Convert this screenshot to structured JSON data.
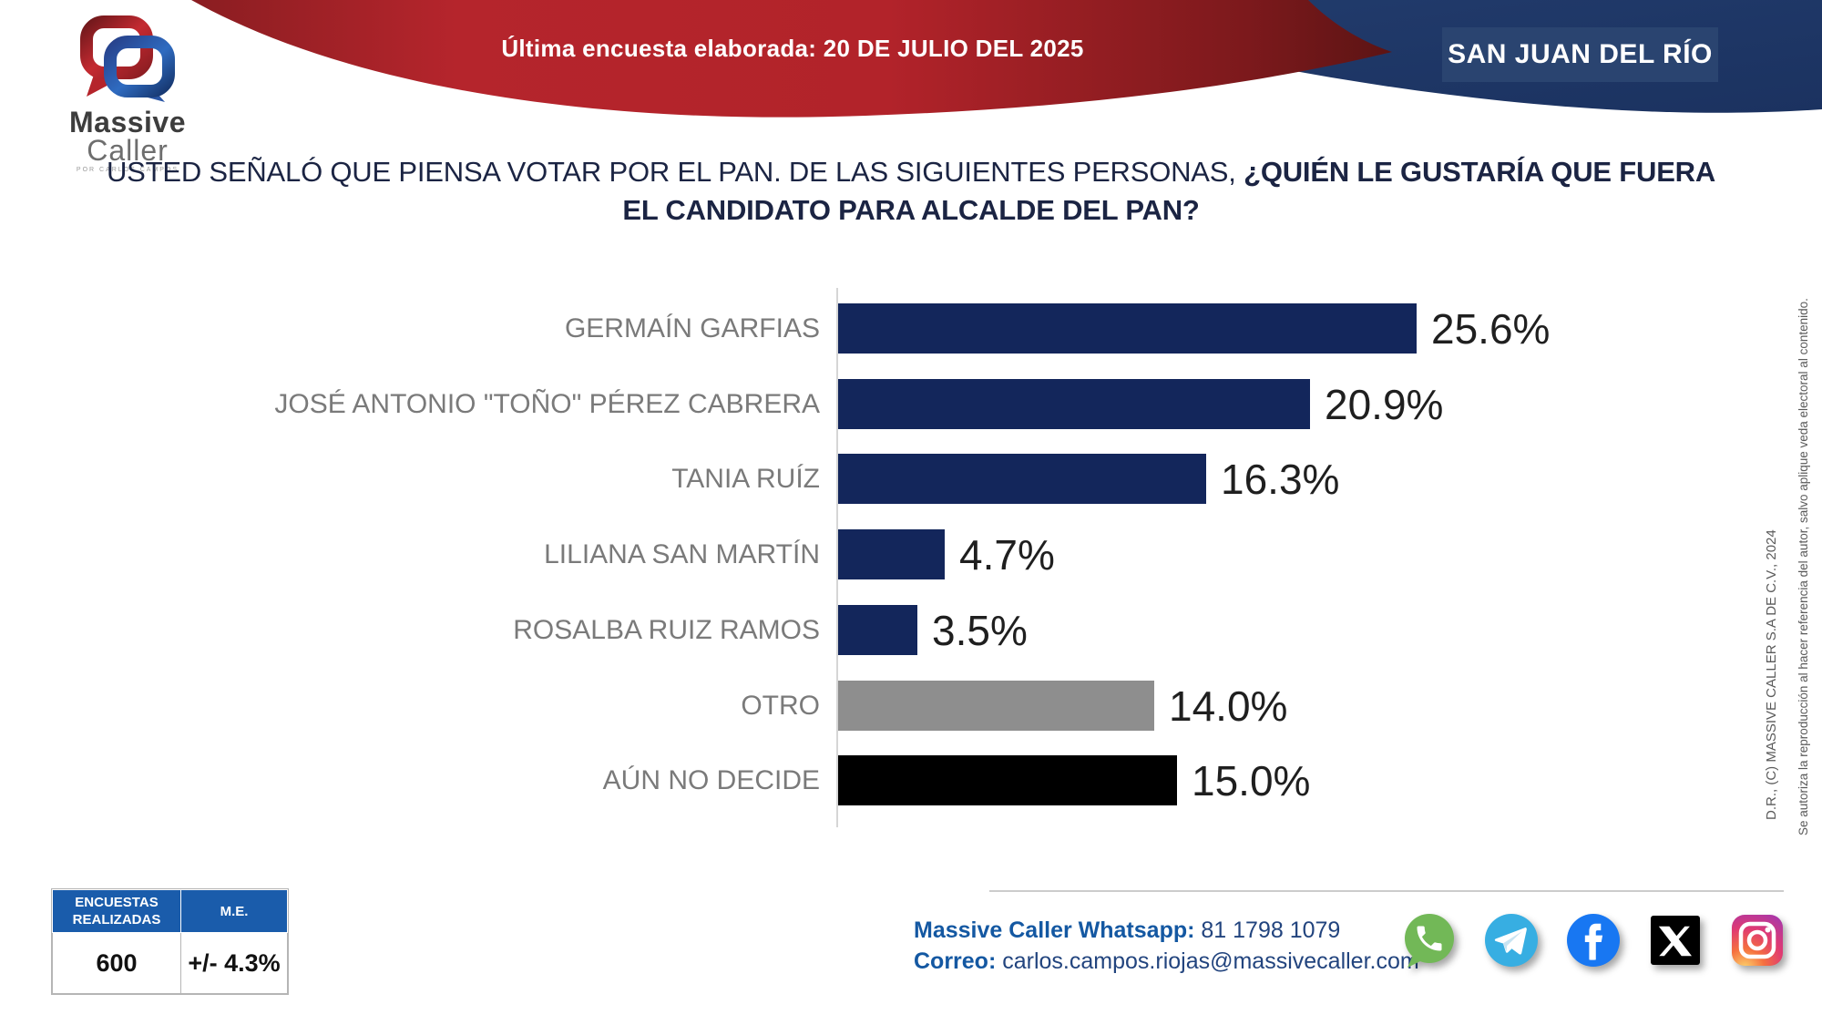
{
  "header": {
    "last_poll_label": "Última encuesta elaborada:",
    "last_poll_date": "20 DE JULIO DEL 2025",
    "region": "SAN JUAN DEL RÍO",
    "logo": {
      "word1": "Massive",
      "word2": "Caller",
      "tagline": "POR CARLOS CAMPOS"
    }
  },
  "title": {
    "normal": "USTED SEÑALÓ QUE PIENSA VOTAR POR EL PAN. DE LAS SIGUIENTES PERSONAS, ",
    "bold_line1": "¿QUIÉN LE GUSTARÍA QUE FUERA",
    "bold_line2": "EL CANDIDATO PARA ALCALDE DEL PAN?"
  },
  "chart_data": {
    "type": "bar",
    "orientation": "horizontal",
    "categories": [
      "GERMAÍN GARFIAS",
      "JOSÉ ANTONIO \"TOÑO\" PÉREZ CABRERA",
      "TANIA RUÍZ",
      "LILIANA SAN MARTÍN",
      "ROSALBA RUIZ RAMOS",
      "OTRO",
      "AÚN NO DECIDE"
    ],
    "values": [
      25.6,
      20.9,
      16.3,
      4.7,
      3.5,
      14.0,
      15.0
    ],
    "value_labels": [
      "25.6%",
      "20.9%",
      "16.3%",
      "4.7%",
      "3.5%",
      "14.0%",
      "15.0%"
    ],
    "bar_colors": [
      "#13265b",
      "#13265b",
      "#13265b",
      "#13265b",
      "#13265b",
      "#8e8e8e",
      "#000000"
    ],
    "title": "",
    "xlabel": "",
    "ylabel": "",
    "xlim": [
      0,
      27
    ],
    "grid": false,
    "legend": false
  },
  "stats_table": {
    "headers": [
      "ENCUESTAS REALIZADAS",
      "M.E."
    ],
    "values": [
      "600",
      "+/- 4.3%"
    ]
  },
  "contact": {
    "whatsapp_label": "Massive Caller Whatsapp:",
    "whatsapp_value": "81 1798 1079",
    "email_label": "Correo:",
    "email_value": "carlos.campos.riojas@massivecaller.com"
  },
  "social_icons": [
    "whatsapp-icon",
    "telegram-icon",
    "facebook-icon",
    "x-icon",
    "instagram-icon"
  ],
  "legal": {
    "copyright": "D.R., (C) MASSIVE CALLER S.A DE C.V., 2024",
    "notice": "Se autoriza la reproducción al hacer referencia del autor, salvo aplique veda electoral al contenido."
  },
  "colors": {
    "banner_red": "#b5252c",
    "banner_red_dark": "#5c1414",
    "banner_navy": "#1e3765",
    "region_box": "#2a4470",
    "bar_navy": "#13265b",
    "bar_gray": "#8e8e8e",
    "bar_black": "#000000",
    "table_header_blue": "#1a5cab",
    "contact_blue": "#1458a2",
    "title_navy": "#1b2443"
  }
}
